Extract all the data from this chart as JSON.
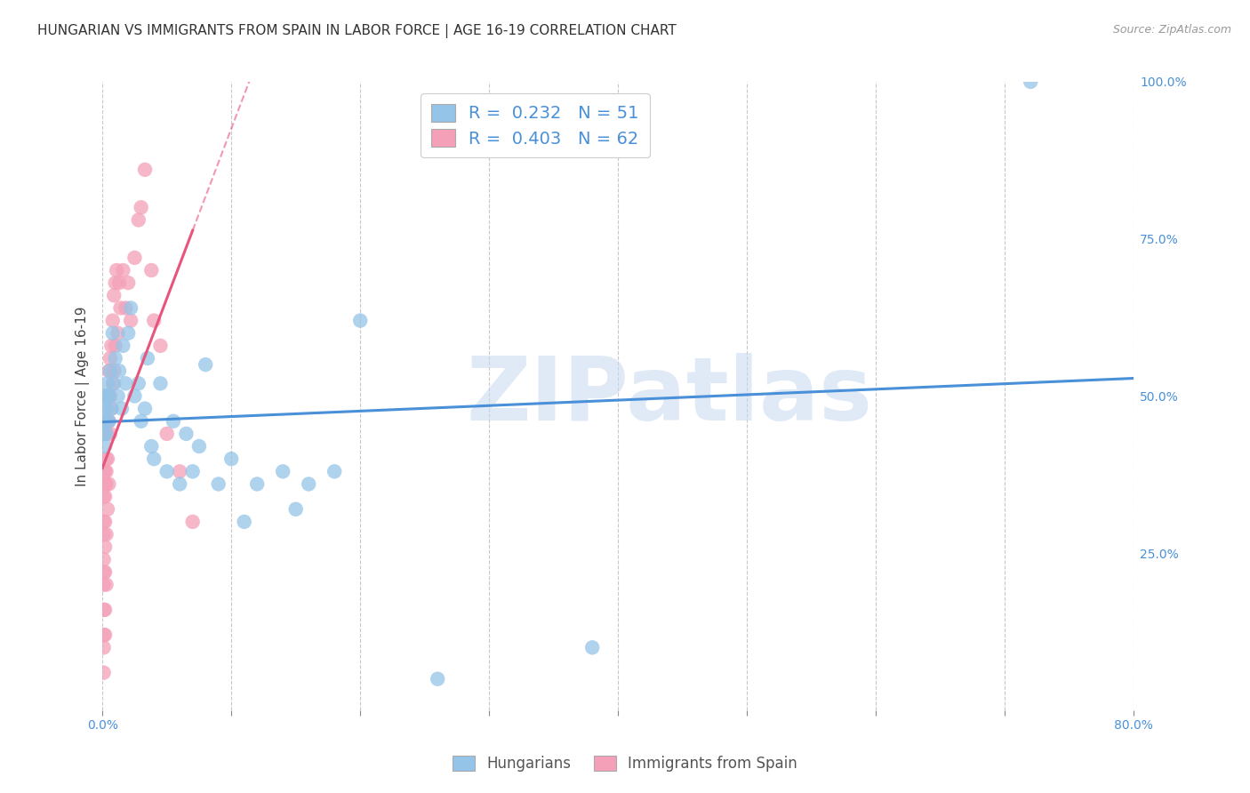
{
  "title": "HUNGARIAN VS IMMIGRANTS FROM SPAIN IN LABOR FORCE | AGE 16-19 CORRELATION CHART",
  "source": "Source: ZipAtlas.com",
  "ylabel": "In Labor Force | Age 16-19",
  "xlim": [
    0.0,
    0.8
  ],
  "ylim": [
    0.0,
    1.0
  ],
  "blue_color": "#94C4E8",
  "pink_color": "#F4A0B8",
  "blue_line_color": "#4A90D9",
  "pink_line_color": "#E8547A",
  "watermark_text": "ZIPatlas",
  "watermark_color": "#C8D8F0",
  "background_color": "#ffffff",
  "title_fontsize": 11,
  "axis_label_fontsize": 11,
  "tick_fontsize": 10,
  "legend_entry1": "R =  0.232   N = 51",
  "legend_entry2": "R =  0.403   N = 62",
  "legend_label1": "Hungarians",
  "legend_label2": "Immigrants from Spain",
  "hungarian_x": [
    0.001,
    0.001,
    0.002,
    0.002,
    0.002,
    0.003,
    0.003,
    0.003,
    0.004,
    0.004,
    0.005,
    0.005,
    0.006,
    0.007,
    0.008,
    0.009,
    0.01,
    0.012,
    0.013,
    0.015,
    0.016,
    0.018,
    0.02,
    0.022,
    0.025,
    0.028,
    0.03,
    0.033,
    0.035,
    0.038,
    0.04,
    0.045,
    0.05,
    0.055,
    0.06,
    0.065,
    0.07,
    0.075,
    0.08,
    0.09,
    0.1,
    0.11,
    0.12,
    0.14,
    0.15,
    0.16,
    0.18,
    0.2,
    0.26,
    0.38,
    0.72
  ],
  "hungarian_y": [
    0.44,
    0.46,
    0.42,
    0.48,
    0.5,
    0.44,
    0.46,
    0.48,
    0.5,
    0.52,
    0.46,
    0.5,
    0.54,
    0.48,
    0.6,
    0.52,
    0.56,
    0.5,
    0.54,
    0.48,
    0.58,
    0.52,
    0.6,
    0.64,
    0.5,
    0.52,
    0.46,
    0.48,
    0.56,
    0.42,
    0.4,
    0.52,
    0.38,
    0.46,
    0.36,
    0.44,
    0.38,
    0.42,
    0.55,
    0.36,
    0.4,
    0.3,
    0.36,
    0.38,
    0.32,
    0.36,
    0.38,
    0.62,
    0.05,
    0.1,
    1.0
  ],
  "spain_x": [
    0.001,
    0.001,
    0.001,
    0.001,
    0.001,
    0.001,
    0.001,
    0.001,
    0.001,
    0.001,
    0.001,
    0.002,
    0.002,
    0.002,
    0.002,
    0.002,
    0.002,
    0.002,
    0.002,
    0.003,
    0.003,
    0.003,
    0.003,
    0.003,
    0.003,
    0.004,
    0.004,
    0.004,
    0.004,
    0.005,
    0.005,
    0.005,
    0.005,
    0.006,
    0.006,
    0.006,
    0.007,
    0.007,
    0.008,
    0.008,
    0.009,
    0.009,
    0.01,
    0.01,
    0.011,
    0.012,
    0.013,
    0.014,
    0.016,
    0.018,
    0.02,
    0.022,
    0.025,
    0.028,
    0.03,
    0.033,
    0.038,
    0.04,
    0.045,
    0.05,
    0.06,
    0.07
  ],
  "spain_y": [
    0.38,
    0.34,
    0.3,
    0.28,
    0.24,
    0.22,
    0.2,
    0.16,
    0.12,
    0.1,
    0.06,
    0.38,
    0.36,
    0.34,
    0.3,
    0.26,
    0.22,
    0.16,
    0.12,
    0.44,
    0.4,
    0.38,
    0.36,
    0.28,
    0.2,
    0.5,
    0.46,
    0.4,
    0.32,
    0.54,
    0.5,
    0.46,
    0.36,
    0.56,
    0.5,
    0.44,
    0.58,
    0.48,
    0.62,
    0.52,
    0.66,
    0.54,
    0.68,
    0.58,
    0.7,
    0.6,
    0.68,
    0.64,
    0.7,
    0.64,
    0.68,
    0.62,
    0.72,
    0.78,
    0.8,
    0.86,
    0.7,
    0.62,
    0.58,
    0.44,
    0.38,
    0.3
  ]
}
